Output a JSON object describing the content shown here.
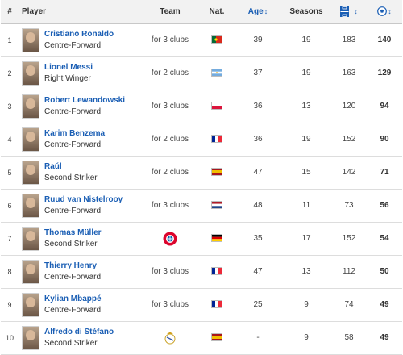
{
  "headers": {
    "rank": "#",
    "player": "Player",
    "team": "Team",
    "nat": "Nat.",
    "age": "Age",
    "seasons": "Seasons"
  },
  "rows": [
    {
      "rank": "1",
      "name": "Cristiano Ronaldo",
      "position": "Centre-Forward",
      "team": "for 3 clubs",
      "flag": "portugal-flag",
      "age": "39",
      "seasons": "19",
      "matches": "183",
      "goals": "140"
    },
    {
      "rank": "2",
      "name": "Lionel Messi",
      "position": "Right Winger",
      "team": "for 2 clubs",
      "flag": "argentina-flag",
      "age": "37",
      "seasons": "19",
      "matches": "163",
      "goals": "129"
    },
    {
      "rank": "3",
      "name": "Robert Lewandowski",
      "position": "Centre-Forward",
      "team": "for 3 clubs",
      "flag": "poland-flag",
      "age": "36",
      "seasons": "13",
      "matches": "120",
      "goals": "94"
    },
    {
      "rank": "4",
      "name": "Karim Benzema",
      "position": "Centre-Forward",
      "team": "for 2 clubs",
      "flag": "france-flag",
      "age": "36",
      "seasons": "19",
      "matches": "152",
      "goals": "90"
    },
    {
      "rank": "5",
      "name": "Raúl",
      "position": "Second Striker",
      "team": "for 2 clubs",
      "flag": "spain-flag",
      "age": "47",
      "seasons": "15",
      "matches": "142",
      "goals": "71"
    },
    {
      "rank": "6",
      "name": "Ruud van Nistelrooy",
      "position": "Centre-Forward",
      "team": "for 3 clubs",
      "flag": "netherlands-flag",
      "age": "48",
      "seasons": "11",
      "matches": "73",
      "goals": "56"
    },
    {
      "rank": "7",
      "name": "Thomas Müller",
      "position": "Second Striker",
      "team": "",
      "crest": "bayern-crest-icon",
      "flag": "germany-flag",
      "age": "35",
      "seasons": "17",
      "matches": "152",
      "goals": "54"
    },
    {
      "rank": "8",
      "name": "Thierry Henry",
      "position": "Centre-Forward",
      "team": "for 3 clubs",
      "flag": "france-flag",
      "age": "47",
      "seasons": "13",
      "matches": "112",
      "goals": "50"
    },
    {
      "rank": "9",
      "name": "Kylian Mbappé",
      "position": "Centre-Forward",
      "team": "for 3 clubs",
      "flag": "france-flag",
      "age": "25",
      "seasons": "9",
      "matches": "74",
      "goals": "49"
    },
    {
      "rank": "10",
      "name": "Alfredo di Stéfano",
      "position": "Second Striker",
      "team": "",
      "crest": "real-madrid-crest-icon",
      "flag": "spain-flag",
      "age": "-",
      "seasons": "9",
      "matches": "58",
      "goals": "49"
    }
  ],
  "colors": {
    "link": "#1a5eb4",
    "header_bg": "#f2f2f2"
  }
}
